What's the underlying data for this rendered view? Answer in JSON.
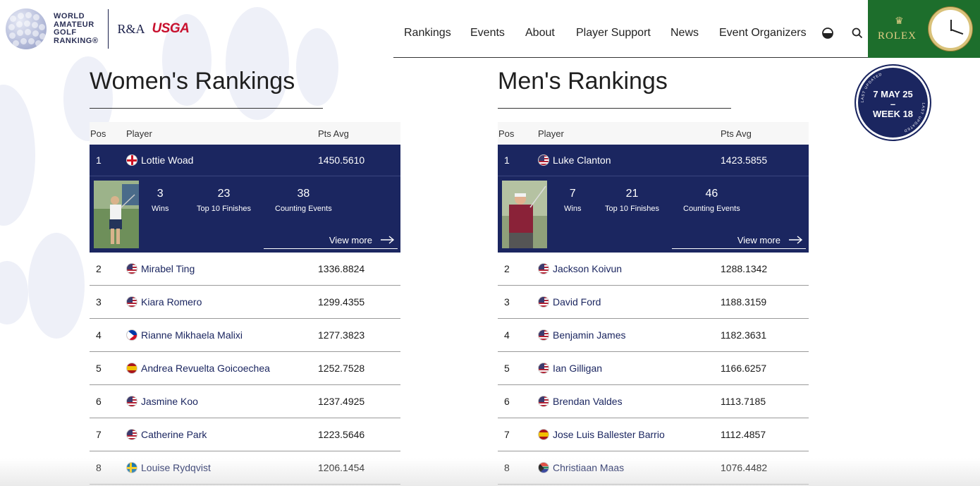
{
  "brand": {
    "logo_text": [
      "WORLD",
      "AMATEUR",
      "GOLF",
      "RANKING®"
    ],
    "partner_ra": "R&A",
    "partner_usga": "USGA"
  },
  "nav": {
    "items": [
      "Rankings",
      "Events",
      "About",
      "Player Support",
      "News",
      "Event Organizers"
    ],
    "theme_icon": "contrast-icon",
    "search_icon": "search-icon"
  },
  "sponsor": {
    "name": "ROLEX",
    "clock_label": "ROLEX"
  },
  "updated_badge": {
    "ring_text": "LAST UPDATED",
    "date": "7 MAY 25",
    "dash": "–",
    "week": "WEEK 18"
  },
  "women": {
    "title": "Women's Rankings",
    "headers": {
      "pos": "Pos",
      "player": "Player",
      "pts": "Pts Avg"
    },
    "leader": {
      "pos": "1",
      "name": "Lottie Woad",
      "flag": "en",
      "pts": "1450.5610",
      "stats": [
        {
          "value": "3",
          "label": "Wins"
        },
        {
          "value": "23",
          "label": "Top 10 Finishes"
        },
        {
          "value": "38",
          "label": "Counting Events"
        }
      ],
      "view_more": "View more"
    },
    "rows": [
      {
        "pos": "2",
        "name": "Mirabel Ting",
        "flag": "us",
        "pts": "1336.8824"
      },
      {
        "pos": "3",
        "name": "Kiara Romero",
        "flag": "us",
        "pts": "1299.4355"
      },
      {
        "pos": "4",
        "name": "Rianne Mikhaela Malixi",
        "flag": "ph",
        "pts": "1277.3823"
      },
      {
        "pos": "5",
        "name": "Andrea Revuelta Goicoechea",
        "flag": "es",
        "pts": "1252.7528"
      },
      {
        "pos": "6",
        "name": "Jasmine Koo",
        "flag": "us",
        "pts": "1237.4925"
      },
      {
        "pos": "7",
        "name": "Catherine Park",
        "flag": "us",
        "pts": "1223.5646"
      },
      {
        "pos": "8",
        "name": "Louise Rydqvist",
        "flag": "se",
        "pts": "1206.1454"
      }
    ]
  },
  "men": {
    "title": "Men's Rankings",
    "headers": {
      "pos": "Pos",
      "player": "Player",
      "pts": "Pts Avg"
    },
    "leader": {
      "pos": "1",
      "name": "Luke Clanton",
      "flag": "us",
      "pts": "1423.5855",
      "stats": [
        {
          "value": "7",
          "label": "Wins"
        },
        {
          "value": "21",
          "label": "Top 10 Finishes"
        },
        {
          "value": "46",
          "label": "Counting Events"
        }
      ],
      "view_more": "View more"
    },
    "rows": [
      {
        "pos": "2",
        "name": "Jackson Koivun",
        "flag": "us",
        "pts": "1288.1342"
      },
      {
        "pos": "3",
        "name": "David Ford",
        "flag": "us",
        "pts": "1188.3159"
      },
      {
        "pos": "4",
        "name": "Benjamin James",
        "flag": "us",
        "pts": "1182.3631"
      },
      {
        "pos": "5",
        "name": "Ian Gilligan",
        "flag": "us",
        "pts": "1166.6257"
      },
      {
        "pos": "6",
        "name": "Brendan Valdes",
        "flag": "us",
        "pts": "1113.7185"
      },
      {
        "pos": "7",
        "name": "Jose Luis Ballester Barrio",
        "flag": "es",
        "pts": "1112.4857"
      },
      {
        "pos": "8",
        "name": "Christiaan Maas",
        "flag": "za",
        "pts": "1076.4482"
      }
    ]
  }
}
